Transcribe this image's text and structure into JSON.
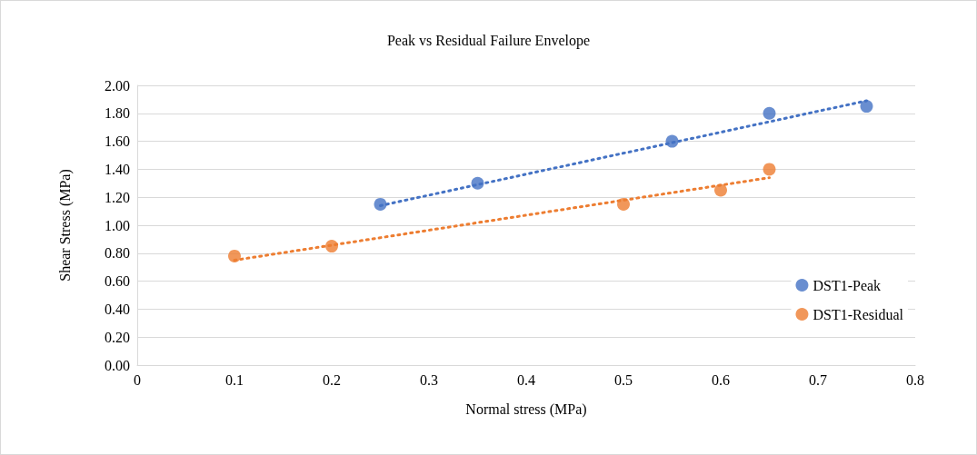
{
  "chart_data": {
    "type": "scatter",
    "title": "Peak vs Residual Failure Envelope",
    "xlabel": "Normal stress (MPa)",
    "ylabel": "Shear Stress (MPa)",
    "series": [
      {
        "name": "DST1-Peak",
        "color": "#4472c4",
        "x": [
          0.25,
          0.35,
          0.55,
          0.65,
          0.75
        ],
        "values": [
          1.15,
          1.3,
          1.6,
          1.8,
          1.85
        ]
      },
      {
        "name": "DST1-Residual",
        "color": "#ed7d31",
        "x": [
          0.1,
          0.2,
          0.5,
          0.6,
          0.65
        ],
        "values": [
          0.78,
          0.85,
          1.15,
          1.25,
          1.4
        ]
      },
      {
        "type": "line",
        "line_style": "dotted",
        "marker": "none",
        "color": "#4472c4",
        "x": [
          0.25,
          0.75
        ],
        "values": [
          1.14,
          1.89
        ]
      },
      {
        "type": "line",
        "line_style": "dotted",
        "marker": "none",
        "color": "#ed7d31",
        "x": [
          0.1,
          0.65
        ],
        "values": [
          0.75,
          1.34
        ]
      }
    ],
    "xlim": [
      0,
      0.8
    ],
    "xticks": [
      0,
      0.1,
      0.2,
      0.3,
      0.4,
      0.5,
      0.6,
      0.7,
      0.8
    ],
    "ylim": [
      0,
      2
    ],
    "yticks": [
      {
        "value": 0,
        "label": "0.00"
      },
      {
        "value": 0.2,
        "label": "0.20"
      },
      {
        "value": 0.4,
        "label": "0.40"
      },
      {
        "value": 0.6,
        "label": "0.60"
      },
      {
        "value": 0.8,
        "label": "0.80"
      },
      {
        "value": 1,
        "label": "1.00"
      },
      {
        "value": 1.2,
        "label": "1.20"
      },
      {
        "value": 1.4,
        "label": "1.40"
      },
      {
        "value": 1.6,
        "label": "1.60"
      },
      {
        "value": 1.8,
        "label": "1.80"
      },
      {
        "value": 2,
        "label": "2.00"
      }
    ],
    "grid": "y",
    "legend": "right",
    "marker": "circle"
  }
}
